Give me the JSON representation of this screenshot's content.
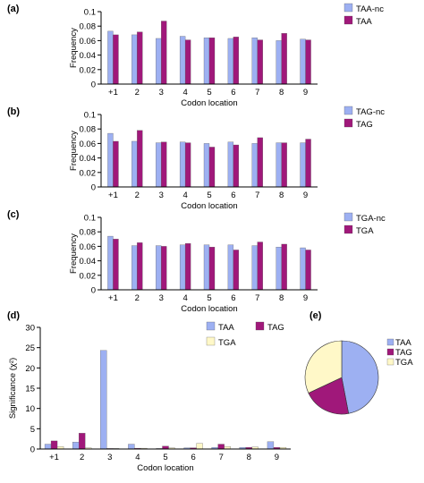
{
  "colors": {
    "nc": "#9db0f2",
    "stop": "#a0187a",
    "tga_d": "#fff8c8",
    "axis": "#000000"
  },
  "chart_data": [
    {
      "panel": "(a)",
      "type": "bar",
      "categories": [
        "+1",
        "2",
        "3",
        "4",
        "5",
        "6",
        "7",
        "8",
        "9"
      ],
      "xlabel": "Codon location",
      "ylabel": "Frequency",
      "ylim": [
        0,
        0.1
      ],
      "yticks": [
        "0",
        "0.02",
        "0.04",
        "0.06",
        "0.08",
        "0.1"
      ],
      "legend_position": "top-right",
      "series": [
        {
          "name": "TAA-nc",
          "color": "#9db0f2",
          "values": [
            0.073,
            0.068,
            0.063,
            0.066,
            0.064,
            0.063,
            0.064,
            0.06,
            0.062
          ]
        },
        {
          "name": "TAA",
          "color": "#a0187a",
          "values": [
            0.068,
            0.072,
            0.087,
            0.061,
            0.064,
            0.065,
            0.061,
            0.07,
            0.061
          ]
        }
      ]
    },
    {
      "panel": "(b)",
      "type": "bar",
      "categories": [
        "+1",
        "2",
        "3",
        "4",
        "5",
        "6",
        "7",
        "8",
        "9"
      ],
      "xlabel": "Codon location",
      "ylabel": "Frequency",
      "ylim": [
        0,
        0.1
      ],
      "yticks": [
        "0",
        "0.02",
        "0.04",
        "0.06",
        "0.08",
        "0.1"
      ],
      "legend_position": "top-right",
      "series": [
        {
          "name": "TAG-nc",
          "color": "#9db0f2",
          "values": [
            0.074,
            0.063,
            0.061,
            0.062,
            0.06,
            0.062,
            0.06,
            0.061,
            0.061
          ]
        },
        {
          "name": "TAG",
          "color": "#a0187a",
          "values": [
            0.063,
            0.078,
            0.062,
            0.061,
            0.055,
            0.058,
            0.068,
            0.061,
            0.066
          ]
        }
      ]
    },
    {
      "panel": "(c)",
      "type": "bar",
      "categories": [
        "+1",
        "2",
        "3",
        "4",
        "5",
        "6",
        "7",
        "8",
        "9"
      ],
      "xlabel": "Codon location",
      "ylabel": "Frequency",
      "ylim": [
        0,
        0.1
      ],
      "yticks": [
        "0",
        "0.02",
        "0.04",
        "0.06",
        "0.08",
        "0.1"
      ],
      "legend_position": "top-right",
      "series": [
        {
          "name": "TGA-nc",
          "color": "#9db0f2",
          "values": [
            0.074,
            0.061,
            0.061,
            0.062,
            0.062,
            0.062,
            0.061,
            0.059,
            0.058
          ]
        },
        {
          "name": "TGA",
          "color": "#a0187a",
          "values": [
            0.07,
            0.065,
            0.06,
            0.064,
            0.059,
            0.055,
            0.066,
            0.063,
            0.055
          ]
        }
      ]
    },
    {
      "panel": "(d)",
      "type": "bar",
      "categories": [
        "+1",
        "2",
        "3",
        "4",
        "5",
        "6",
        "7",
        "8",
        "9"
      ],
      "xlabel": "Codon location",
      "ylabel": "Significance (χ²)",
      "ylim": [
        0,
        30
      ],
      "yticks": [
        "0",
        "5",
        "10",
        "15",
        "20",
        "25",
        "30"
      ],
      "legend_position": "top-right",
      "series": [
        {
          "name": "TAA",
          "color": "#9db0f2",
          "values": [
            1.2,
            1.7,
            24.3,
            1.2,
            0.0,
            0.3,
            0.4,
            0.4,
            1.8
          ]
        },
        {
          "name": "TAG",
          "color": "#a0187a",
          "values": [
            2.0,
            3.9,
            0.0,
            0.2,
            0.7,
            0.3,
            1.2,
            0.4,
            0.4
          ]
        },
        {
          "name": "TGA",
          "color": "#fff8c8",
          "values": [
            0.6,
            0.3,
            0.0,
            0.2,
            0.3,
            1.4,
            0.6,
            0.5,
            0.4
          ]
        }
      ]
    },
    {
      "panel": "(e)",
      "type": "pie",
      "legend_position": "right",
      "slices": [
        {
          "name": "TAA",
          "color": "#9db0f2",
          "value": 47
        },
        {
          "name": "TAG",
          "color": "#a0187a",
          "value": 21
        },
        {
          "name": "TGA",
          "color": "#fff8c8",
          "value": 32
        }
      ]
    }
  ]
}
